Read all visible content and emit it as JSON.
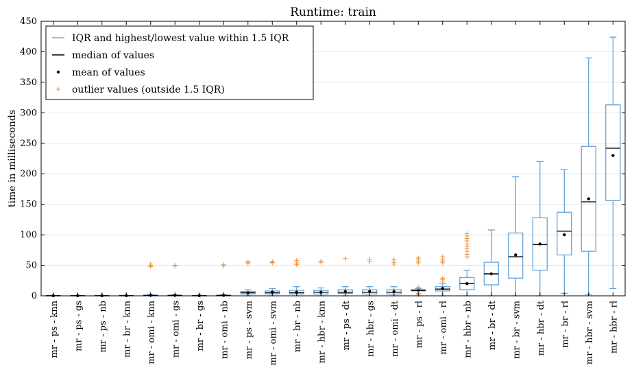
{
  "chart_data": {
    "type": "boxplot",
    "title": "Runtime: train",
    "xlabel": "",
    "ylabel": "time in milliseconds",
    "ylim": [
      0,
      450
    ],
    "yticks": [
      0,
      50,
      100,
      150,
      200,
      250,
      300,
      350,
      400,
      450
    ],
    "grid": "horizontal",
    "legend_position": "top-left",
    "legend": [
      {
        "kind": "whisker",
        "label": "IQR and highest/lowest value within 1.5 IQR"
      },
      {
        "kind": "median",
        "label": "median of values"
      },
      {
        "kind": "mean",
        "label": "mean of values"
      },
      {
        "kind": "outlier",
        "label": "outlier values (outside 1.5 IQR)"
      }
    ],
    "colors": {
      "box": "#5b9bd5",
      "median": "#000000",
      "mean": "#000000",
      "outlier": "#e8913f"
    },
    "categories": [
      {
        "label": "mr - ps - knn",
        "low": 0,
        "q1": 0.1,
        "median": 0.2,
        "q3": 0.3,
        "high": 0.6,
        "mean": 0.2,
        "outliers": []
      },
      {
        "label": "mr - ps - gs",
        "low": 0,
        "q1": 0.1,
        "median": 0.2,
        "q3": 0.3,
        "high": 0.6,
        "mean": 0.2,
        "outliers": []
      },
      {
        "label": "mr - ps - nb",
        "low": 0,
        "q1": 0.1,
        "median": 0.2,
        "q3": 0.3,
        "high": 0.6,
        "mean": 0.2,
        "outliers": []
      },
      {
        "label": "mr - br - knn",
        "low": 0,
        "q1": 0.1,
        "median": 0.2,
        "q3": 0.4,
        "high": 0.8,
        "mean": 0.3,
        "outliers": []
      },
      {
        "label": "mr - omi - knn",
        "low": 0,
        "q1": 0.3,
        "median": 0.6,
        "q3": 1.0,
        "high": 2,
        "mean": 0.8,
        "outliers": [
          48,
          50,
          52
        ]
      },
      {
        "label": "mr - omi - gs",
        "low": 0,
        "q1": 0.3,
        "median": 0.6,
        "q3": 1.0,
        "high": 2,
        "mean": 0.8,
        "outliers": [
          49,
          50
        ]
      },
      {
        "label": "mr - br - gs",
        "low": 0,
        "q1": 0.1,
        "median": 0.2,
        "q3": 0.4,
        "high": 0.8,
        "mean": 0.3,
        "outliers": []
      },
      {
        "label": "mr - omi - nb",
        "low": 0,
        "q1": 0.3,
        "median": 0.6,
        "q3": 1.0,
        "high": 2,
        "mean": 0.8,
        "outliers": [
          49,
          51
        ]
      },
      {
        "label": "mr - ps - svm",
        "low": 0,
        "q1": 3,
        "median": 5,
        "q3": 7,
        "high": 10,
        "mean": 5,
        "outliers": [
          53,
          55,
          56
        ]
      },
      {
        "label": "mr - omi - svm",
        "low": 0,
        "q1": 3,
        "median": 5,
        "q3": 8,
        "high": 12,
        "mean": 6,
        "outliers": [
          54,
          55,
          56
        ]
      },
      {
        "label": "mr - br - nb",
        "low": 0,
        "q1": 3,
        "median": 5,
        "q3": 9,
        "high": 15,
        "mean": 6,
        "outliers": [
          51,
          54,
          58
        ]
      },
      {
        "label": "mr - hbr - knn",
        "low": 0,
        "q1": 3,
        "median": 6,
        "q3": 9,
        "high": 13,
        "mean": 6,
        "outliers": [
          55,
          57
        ]
      },
      {
        "label": "mr - ps - dt",
        "low": 0,
        "q1": 4,
        "median": 6,
        "q3": 10,
        "high": 15,
        "mean": 7,
        "outliers": [
          61
        ]
      },
      {
        "label": "mr - hbr - gs",
        "low": 0,
        "q1": 3,
        "median": 6,
        "q3": 10,
        "high": 15,
        "mean": 7,
        "outliers": [
          56,
          60
        ]
      },
      {
        "label": "mr - omi - dt",
        "low": 0,
        "q1": 3,
        "median": 6,
        "q3": 10,
        "high": 15,
        "mean": 7,
        "outliers": [
          52,
          55,
          59
        ]
      },
      {
        "label": "mr - ps - rl",
        "low": 0,
        "q1": 8,
        "median": 9,
        "q3": 10,
        "high": 12,
        "mean": 9,
        "outliers": [
          2,
          4,
          14,
          54,
          57,
          60,
          62
        ]
      },
      {
        "label": "mr - omi - rl",
        "low": 0,
        "q1": 8,
        "median": 11,
        "q3": 15,
        "high": 20,
        "mean": 12,
        "outliers": [
          24,
          27,
          29,
          54,
          57,
          60,
          64
        ]
      },
      {
        "label": "mr - hbr - nb",
        "low": 0,
        "q1": 10,
        "median": 20,
        "q3": 30,
        "high": 42,
        "mean": 20,
        "outliers": [
          64,
          68,
          73,
          77,
          81,
          85,
          90,
          94,
          98,
          102
        ]
      },
      {
        "label": "mr - br - dt",
        "low": 0,
        "q1": 18,
        "median": 36,
        "q3": 55,
        "high": 108,
        "mean": 36,
        "outliers": []
      },
      {
        "label": "mr - br - svm",
        "low": 0,
        "q1": 29,
        "median": 64,
        "q3": 103,
        "high": 195,
        "mean": 67,
        "outliers": []
      },
      {
        "label": "mr - hbr - dt",
        "low": 0,
        "q1": 42,
        "median": 84,
        "q3": 128,
        "high": 220,
        "mean": 85,
        "outliers": []
      },
      {
        "label": "mr - br - rl",
        "low": 4,
        "q1": 67,
        "median": 106,
        "q3": 137,
        "high": 207,
        "mean": 100,
        "outliers": []
      },
      {
        "label": "mr - hbr - svm",
        "low": 2,
        "q1": 73,
        "median": 154,
        "q3": 245,
        "high": 390,
        "mean": 159,
        "outliers": []
      },
      {
        "label": "mr - hbr - rl",
        "low": 12,
        "q1": 156,
        "median": 242,
        "q3": 313,
        "high": 424,
        "mean": 230,
        "outliers": []
      }
    ]
  }
}
